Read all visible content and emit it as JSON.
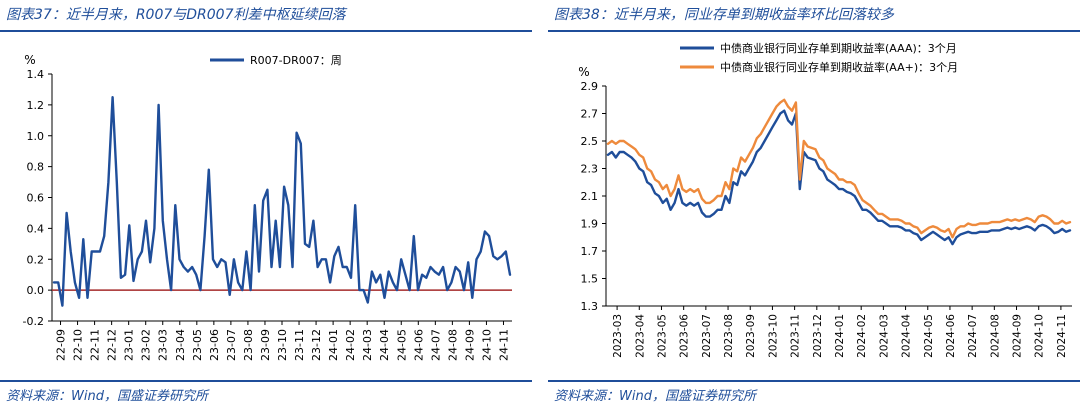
{
  "left_panel": {
    "title": "图表37：近半月来，R007与DR007利差中枢延续回落",
    "source": "资料来源：Wind，国盛证券研究所"
  },
  "right_panel": {
    "title": "图表38：近半月来，同业存单到期收益率环比回落较多",
    "source": "资料来源：Wind，国盛证券研究所"
  },
  "colors": {
    "navy": "#1f4e9a",
    "orange": "#ee8a3c",
    "zero_line": "#a52a2a"
  },
  "chart_data": [
    {
      "type": "line",
      "ylabel": "%",
      "ylim": [
        -0.2,
        1.4
      ],
      "yticks": [
        "-0.2",
        "0.0",
        "0.2",
        "0.4",
        "0.6",
        "0.8",
        "1.0",
        "1.2",
        "1.4"
      ],
      "x_ticks": [
        "22-09",
        "22-10",
        "22-11",
        "22-12",
        "23-01",
        "23-02",
        "23-03",
        "23-04",
        "23-05",
        "23-06",
        "23-07",
        "23-08",
        "23-09",
        "23-10",
        "23-11",
        "23-12",
        "24-01",
        "24-02",
        "24-03",
        "24-04",
        "24-05",
        "24-06",
        "24-07",
        "24-08",
        "24-09",
        "24-10",
        "24-11"
      ],
      "legend_position": "top-center",
      "series": [
        {
          "name": "R007-DR007：周",
          "color": "#1f4e9a",
          "values": [
            0.05,
            0.05,
            -0.1,
            0.5,
            0.25,
            0.05,
            -0.05,
            0.33,
            -0.05,
            0.25,
            0.25,
            0.25,
            0.35,
            0.7,
            1.25,
            0.7,
            0.08,
            0.1,
            0.42,
            0.06,
            0.2,
            0.25,
            0.45,
            0.18,
            0.4,
            1.2,
            0.45,
            0.2,
            0.0,
            0.55,
            0.2,
            0.15,
            0.12,
            0.15,
            0.1,
            0.0,
            0.35,
            0.78,
            0.2,
            0.15,
            0.2,
            0.18,
            -0.03,
            0.2,
            0.05,
            0.0,
            0.25,
            0.0,
            0.55,
            0.12,
            0.58,
            0.65,
            0.15,
            0.45,
            0.15,
            0.67,
            0.55,
            0.15,
            1.02,
            0.95,
            0.3,
            0.28,
            0.45,
            0.15,
            0.2,
            0.2,
            0.05,
            0.22,
            0.28,
            0.15,
            0.15,
            0.08,
            0.55,
            0.0,
            0.0,
            -0.08,
            0.12,
            0.05,
            0.1,
            -0.05,
            0.12,
            0.05,
            0.0,
            0.2,
            0.1,
            0.0,
            0.35,
            0.0,
            0.1,
            0.08,
            0.15,
            0.12,
            0.1,
            0.15,
            0.0,
            0.05,
            0.15,
            0.12,
            0.0,
            0.18,
            -0.05,
            0.2,
            0.25,
            0.38,
            0.35,
            0.22,
            0.2,
            0.22,
            0.25,
            0.1
          ]
        }
      ]
    },
    {
      "type": "line",
      "ylabel": "%",
      "ylim": [
        1.3,
        2.9
      ],
      "yticks": [
        "1.3",
        "1.5",
        "1.7",
        "1.9",
        "2.1",
        "2.3",
        "2.5",
        "2.7",
        "2.9"
      ],
      "x_ticks": [
        "2023-03",
        "2023-04",
        "2023-05",
        "2023-06",
        "2023-07",
        "2023-08",
        "2023-09",
        "2023-10",
        "2023-11",
        "2023-12",
        "2024-01",
        "2024-02",
        "2024-03",
        "2024-04",
        "2024-05",
        "2024-06",
        "2024-07",
        "2024-08",
        "2024-09",
        "2024-10",
        "2024-11"
      ],
      "legend_position": "top",
      "series": [
        {
          "name": "中债商业银行同业存单到期收益率(AAA)：3个月",
          "color": "#1f4e9a",
          "values": [
            2.4,
            2.42,
            2.38,
            2.42,
            2.42,
            2.4,
            2.38,
            2.35,
            2.3,
            2.28,
            2.2,
            2.18,
            2.12,
            2.1,
            2.05,
            2.08,
            2.0,
            2.05,
            2.15,
            2.05,
            2.03,
            2.05,
            2.03,
            2.05,
            1.98,
            1.95,
            1.95,
            1.97,
            2.0,
            2.0,
            2.1,
            2.05,
            2.2,
            2.18,
            2.28,
            2.25,
            2.3,
            2.35,
            2.42,
            2.45,
            2.5,
            2.55,
            2.6,
            2.65,
            2.7,
            2.72,
            2.65,
            2.62,
            2.7,
            2.15,
            2.42,
            2.38,
            2.37,
            2.36,
            2.3,
            2.28,
            2.22,
            2.2,
            2.18,
            2.15,
            2.15,
            2.13,
            2.12,
            2.1,
            2.05,
            2.0,
            2.0,
            1.98,
            1.95,
            1.92,
            1.92,
            1.9,
            1.88,
            1.88,
            1.88,
            1.87,
            1.85,
            1.85,
            1.83,
            1.82,
            1.78,
            1.8,
            1.82,
            1.84,
            1.82,
            1.8,
            1.78,
            1.8,
            1.75,
            1.8,
            1.82,
            1.83,
            1.84,
            1.83,
            1.83,
            1.84,
            1.84,
            1.84,
            1.85,
            1.85,
            1.85,
            1.86,
            1.87,
            1.86,
            1.87,
            1.86,
            1.87,
            1.88,
            1.87,
            1.85,
            1.88,
            1.89,
            1.88,
            1.86,
            1.83,
            1.84,
            1.86,
            1.84,
            1.85
          ]
        },
        {
          "name": "中债商业银行同业存单到期收益率(AA+)：3个月",
          "color": "#ee8a3c",
          "values": [
            2.48,
            2.5,
            2.48,
            2.5,
            2.5,
            2.48,
            2.46,
            2.44,
            2.4,
            2.38,
            2.3,
            2.28,
            2.22,
            2.2,
            2.15,
            2.18,
            2.1,
            2.15,
            2.25,
            2.15,
            2.13,
            2.15,
            2.13,
            2.15,
            2.08,
            2.05,
            2.05,
            2.07,
            2.1,
            2.1,
            2.2,
            2.15,
            2.3,
            2.28,
            2.38,
            2.35,
            2.4,
            2.45,
            2.52,
            2.55,
            2.6,
            2.65,
            2.7,
            2.75,
            2.78,
            2.8,
            2.75,
            2.72,
            2.78,
            2.22,
            2.5,
            2.46,
            2.45,
            2.44,
            2.38,
            2.36,
            2.3,
            2.28,
            2.26,
            2.22,
            2.22,
            2.2,
            2.2,
            2.18,
            2.12,
            2.07,
            2.05,
            2.03,
            2.0,
            1.97,
            1.97,
            1.95,
            1.93,
            1.93,
            1.93,
            1.92,
            1.9,
            1.9,
            1.88,
            1.87,
            1.83,
            1.85,
            1.87,
            1.88,
            1.87,
            1.85,
            1.84,
            1.86,
            1.8,
            1.86,
            1.88,
            1.88,
            1.9,
            1.89,
            1.89,
            1.9,
            1.9,
            1.9,
            1.91,
            1.91,
            1.91,
            1.92,
            1.93,
            1.92,
            1.93,
            1.92,
            1.93,
            1.94,
            1.93,
            1.91,
            1.95,
            1.96,
            1.95,
            1.93,
            1.9,
            1.9,
            1.92,
            1.9,
            1.91
          ]
        }
      ]
    }
  ]
}
